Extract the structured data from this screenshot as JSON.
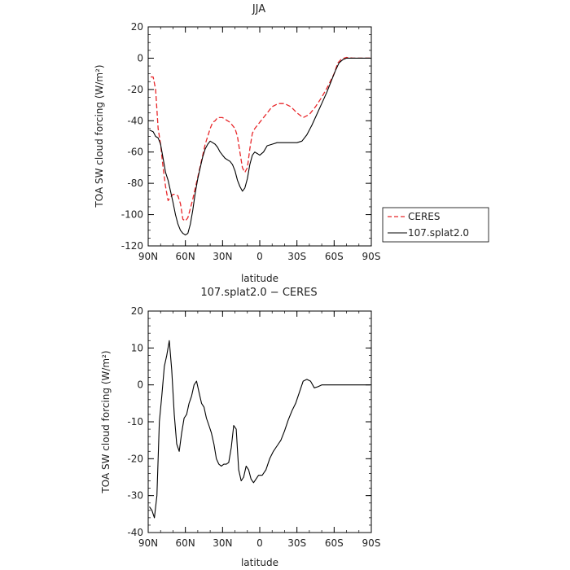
{
  "chart_data": [
    {
      "type": "line",
      "title": "JJA",
      "xlabel": "latitude",
      "ylabel": "TOA SW cloud forcing (W/m²)",
      "xlim": [
        90,
        -90
      ],
      "ylim": [
        -120,
        20
      ],
      "xticks": [
        {
          "value": 90,
          "label": "90N"
        },
        {
          "value": 60,
          "label": "60N"
        },
        {
          "value": 30,
          "label": "30N"
        },
        {
          "value": 0,
          "label": "0"
        },
        {
          "value": -30,
          "label": "30S"
        },
        {
          "value": -60,
          "label": "60S"
        },
        {
          "value": -90,
          "label": "90S"
        }
      ],
      "yticks": [
        {
          "value": 20,
          "label": "20"
        },
        {
          "value": 0,
          "label": "0"
        },
        {
          "value": -20,
          "label": "-20"
        },
        {
          "value": -40,
          "label": "-40"
        },
        {
          "value": -60,
          "label": "-60"
        },
        {
          "value": -80,
          "label": "-80"
        },
        {
          "value": -100,
          "label": "-100"
        },
        {
          "value": -120,
          "label": "-120"
        }
      ],
      "legend": {
        "placement": "right",
        "entries": [
          "CERES",
          "107.splat2.0"
        ]
      },
      "series": [
        {
          "name": "CERES",
          "color": "#e8272a",
          "dash": true,
          "x": [
            88,
            86,
            84,
            82,
            80,
            78,
            76,
            74,
            72,
            70,
            68,
            66,
            64,
            62,
            60,
            58,
            56,
            54,
            52,
            50,
            48,
            46,
            44,
            42,
            40,
            38,
            36,
            34,
            32,
            30,
            28,
            26,
            24,
            22,
            20,
            18,
            16,
            14,
            12,
            10,
            8,
            6,
            4,
            2,
            0,
            -5,
            -10,
            -15,
            -20,
            -25,
            -30,
            -35,
            -40,
            -45,
            -50,
            -55,
            -60,
            -63,
            -66,
            -70,
            -75,
            -80,
            -85,
            -89
          ],
          "y": [
            -12,
            -12,
            -20,
            -45,
            -55,
            -70,
            -82,
            -91,
            -89,
            -87,
            -87,
            -88,
            -93,
            -103,
            -104,
            -102,
            -96,
            -90,
            -83,
            -76,
            -69,
            -62,
            -55,
            -50,
            -45,
            -41,
            -40,
            -38,
            -38,
            -38,
            -39,
            -40,
            -41,
            -43,
            -45,
            -50,
            -60,
            -70,
            -73,
            -70,
            -58,
            -48,
            -45,
            -43,
            -41,
            -36,
            -31,
            -29,
            -29,
            -31,
            -35,
            -38,
            -36,
            -31,
            -25,
            -18,
            -10,
            -3,
            -0.5,
            0.5,
            0,
            0,
            0,
            0
          ]
        },
        {
          "name": "107.splat2.0",
          "color": "#000000",
          "dash": false,
          "x": [
            89,
            86,
            84,
            82,
            80,
            78,
            76,
            74,
            72,
            70,
            68,
            66,
            64,
            62,
            60,
            58,
            56,
            54,
            52,
            50,
            48,
            46,
            44,
            42,
            40,
            38,
            36,
            34,
            32,
            30,
            28,
            26,
            24,
            22,
            20,
            18,
            16,
            14,
            12,
            10,
            8,
            6,
            4,
            2,
            0,
            -3,
            -6,
            -10,
            -14,
            -18,
            -22,
            -26,
            -30,
            -34,
            -38,
            -42,
            -46,
            -50,
            -54,
            -58,
            -61,
            -64,
            -67,
            -70,
            -75,
            -80,
            -85,
            -89
          ],
          "y": [
            -46,
            -47,
            -50,
            -51,
            -55,
            -64,
            -73,
            -78,
            -85,
            -92,
            -100,
            -106,
            -110,
            -112,
            -113,
            -112,
            -106,
            -97,
            -86,
            -77,
            -70,
            -63,
            -58,
            -55,
            -53,
            -54,
            -55,
            -57,
            -60,
            -62,
            -64,
            -65,
            -66,
            -68,
            -72,
            -78,
            -82,
            -85,
            -83,
            -77,
            -68,
            -62,
            -60,
            -61,
            -62,
            -60,
            -56,
            -55,
            -54,
            -54,
            -54,
            -54,
            -54,
            -53,
            -49,
            -43,
            -36,
            -29,
            -22,
            -14,
            -8,
            -3,
            -1,
            0,
            0,
            0,
            0,
            0
          ]
        }
      ]
    },
    {
      "type": "line",
      "title": "107.splat2.0 − CERES",
      "xlabel": "latitude",
      "ylabel": "TOA SW cloud forcing (W/m²)",
      "xlim": [
        90,
        -90
      ],
      "ylim": [
        -40,
        20
      ],
      "xticks": [
        {
          "value": 90,
          "label": "90N"
        },
        {
          "value": 60,
          "label": "60N"
        },
        {
          "value": 30,
          "label": "30N"
        },
        {
          "value": 0,
          "label": "0"
        },
        {
          "value": -30,
          "label": "30S"
        },
        {
          "value": -60,
          "label": "60S"
        },
        {
          "value": -90,
          "label": "90S"
        }
      ],
      "yticks": [
        {
          "value": 20,
          "label": "20"
        },
        {
          "value": 10,
          "label": "10"
        },
        {
          "value": 0,
          "label": "0"
        },
        {
          "value": -10,
          "label": "-10"
        },
        {
          "value": -20,
          "label": "-20"
        },
        {
          "value": -30,
          "label": "-30"
        },
        {
          "value": -40,
          "label": "-40"
        }
      ],
      "series": [
        {
          "color": "#000000",
          "dash": false,
          "x": [
            89,
            87,
            85,
            83,
            81,
            79,
            77,
            75,
            73,
            71,
            69,
            67,
            65,
            63,
            61,
            59,
            57,
            55,
            53,
            51,
            49,
            47,
            45,
            43,
            41,
            39,
            37,
            35,
            33,
            31,
            29,
            27,
            25,
            23,
            21,
            19,
            17,
            15,
            13,
            11,
            9,
            7,
            5,
            3,
            1,
            -2,
            -5,
            -8,
            -11,
            -14,
            -17,
            -20,
            -23,
            -26,
            -29,
            -32,
            -35,
            -38,
            -41,
            -44,
            -47,
            -50,
            -53,
            -56,
            -59,
            -62,
            -65,
            -67,
            -70,
            -75,
            -80,
            -85,
            -89
          ],
          "y": [
            -33,
            -34,
            -36,
            -30,
            -10,
            -3,
            5,
            8,
            12,
            4,
            -8,
            -16,
            -18,
            -13,
            -9,
            -8,
            -5,
            -3,
            0,
            1,
            -2,
            -5,
            -6,
            -9,
            -11,
            -13,
            -16,
            -20,
            -21.5,
            -22,
            -21.5,
            -21.5,
            -21,
            -17,
            -11,
            -12,
            -23,
            -26,
            -25,
            -22,
            -23,
            -25.5,
            -26.5,
            -25.5,
            -24.5,
            -24.5,
            -23,
            -20,
            -18,
            -16.5,
            -15,
            -12.5,
            -9.5,
            -7,
            -5,
            -2,
            1,
            1.5,
            1,
            -0.8,
            -0.5,
            0,
            0,
            0,
            0,
            0,
            0,
            0,
            0,
            0,
            0,
            0,
            0
          ]
        }
      ]
    }
  ]
}
